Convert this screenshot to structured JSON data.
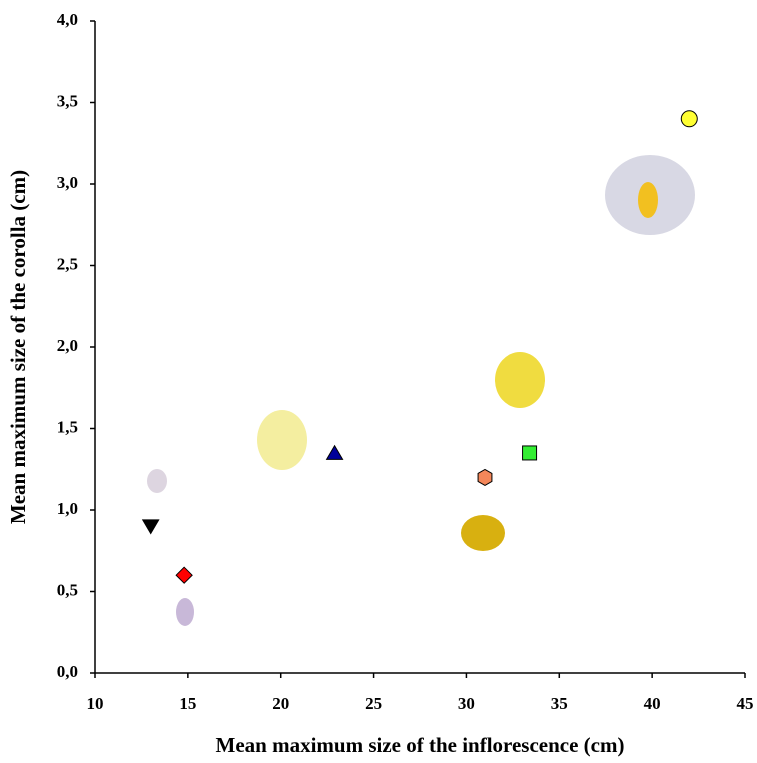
{
  "chart_data": {
    "type": "scatter",
    "x_label": "Mean maximum size of the inflorescence (cm)",
    "y_label": "Mean maximum size of the corolla (cm)",
    "x": [
      13.0,
      14.8,
      22.9,
      31.0,
      33.4,
      42.0
    ],
    "values": [
      0.9,
      0.6,
      1.35,
      1.2,
      1.35,
      3.4
    ],
    "markers": [
      "triangle-down",
      "diamond",
      "triangle-up",
      "hexagon",
      "square",
      "circle"
    ],
    "colors": [
      "#000000",
      "#ff0000",
      "#000099",
      "#f4875a",
      "#33ee33",
      "#ffff33"
    ],
    "xlim": [
      10,
      45
    ],
    "xticks": [
      10,
      15,
      20,
      25,
      30,
      35,
      40,
      45
    ],
    "ylim": [
      0,
      4
    ],
    "yticks": [
      {
        "value": 0,
        "label": "0,0"
      },
      {
        "value": 0.5,
        "label": "0,5"
      },
      {
        "value": 1,
        "label": "1,0"
      },
      {
        "value": 1.5,
        "label": "1,5"
      },
      {
        "value": 2,
        "label": "2,0"
      },
      {
        "value": 2.5,
        "label": "2,5"
      },
      {
        "value": 3,
        "label": "3,0"
      },
      {
        "value": 3.5,
        "label": "3,5"
      },
      {
        "value": 4,
        "label": "4,0"
      }
    ]
  }
}
